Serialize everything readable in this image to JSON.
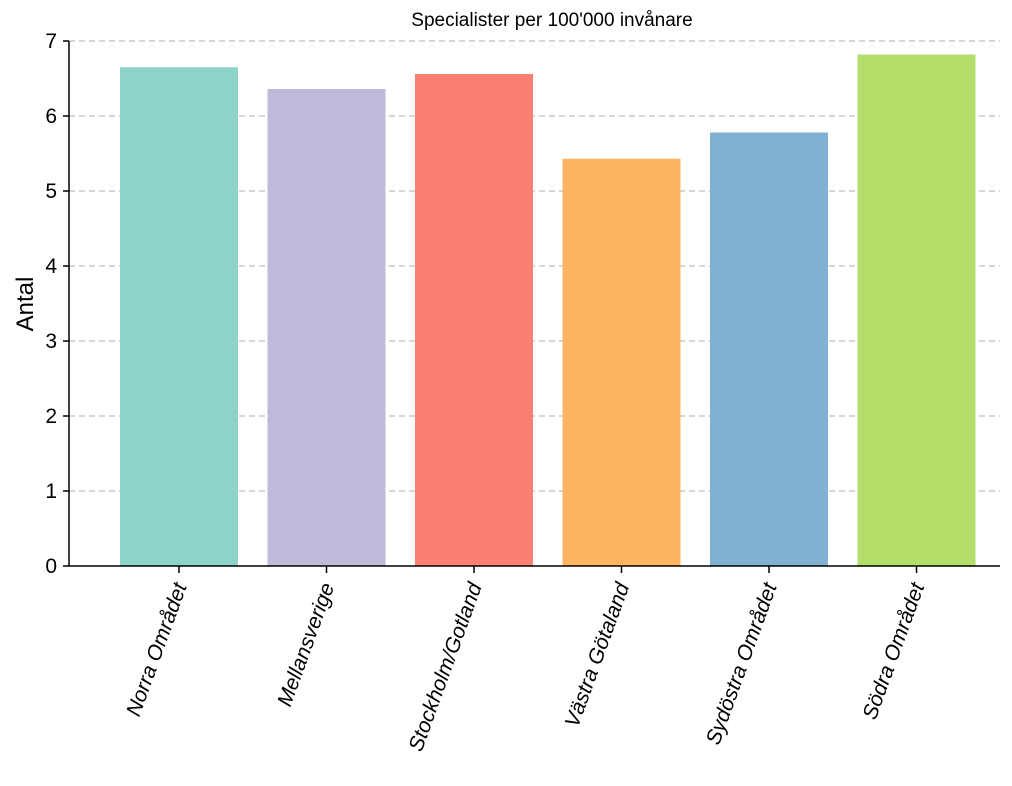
{
  "chart_data": {
    "type": "bar",
    "title": "Specialister per 100'000 invånare",
    "xlabel": "",
    "ylabel": "Antal",
    "ylim": [
      0,
      7
    ],
    "yticks": [
      "0",
      "1",
      "2",
      "3",
      "4",
      "5",
      "6",
      "7"
    ],
    "grid": "horizontal-dashed",
    "categories": [
      "Norra Området",
      "Mellansverige",
      "Stockholm/Gotland",
      "Västra Götaland",
      "Sydöstra Området",
      "Södra Området"
    ],
    "values": [
      6.65,
      6.36,
      6.56,
      5.43,
      5.78,
      6.82
    ],
    "colors": [
      "#8dd3c7",
      "#bebada",
      "#fb8072",
      "#fdb462",
      "#80b1d3",
      "#b3de69"
    ]
  }
}
